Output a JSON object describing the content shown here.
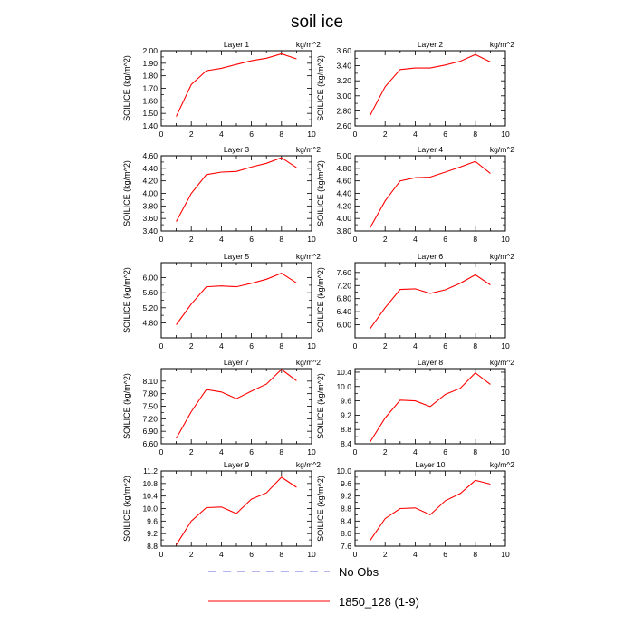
{
  "title": "soil ice",
  "legend": [
    {
      "label": "No Obs",
      "color": "#6b6bdb",
      "style": "dashed"
    },
    {
      "label": "1850_128 (1-9)",
      "color": "#ff0000",
      "style": "solid"
    }
  ],
  "chart_data": [
    {
      "type": "line",
      "panel_label": "Layer 1",
      "units": "kg/m^2",
      "ylabel": "SOILICE  (kg/m^2)",
      "xlim": [
        0,
        10
      ],
      "ylim": [
        1.4,
        2.0
      ],
      "yticks": [
        "1.40",
        "1.50",
        "1.60",
        "1.70",
        "1.80",
        "1.90",
        "2.00"
      ],
      "xticks": [
        "0",
        "2",
        "4",
        "6",
        "8",
        "10"
      ],
      "series": [
        {
          "name": "1850_128 (1-9)",
          "x": [
            1,
            2,
            3,
            4,
            5,
            6,
            7,
            8,
            9
          ],
          "y": [
            1.475,
            1.73,
            1.84,
            1.86,
            1.89,
            1.92,
            1.94,
            1.975,
            1.935
          ]
        }
      ]
    },
    {
      "type": "line",
      "panel_label": "Layer 2",
      "units": "kg/m^2",
      "ylabel": "SOILICE  (kg/m^2)",
      "xlim": [
        0,
        10
      ],
      "ylim": [
        2.6,
        3.6
      ],
      "yticks": [
        "2.60",
        "2.80",
        "3.00",
        "3.20",
        "3.40",
        "3.60"
      ],
      "xticks": [
        "0",
        "2",
        "4",
        "6",
        "8",
        "10"
      ],
      "series": [
        {
          "name": "1850_128 (1-9)",
          "x": [
            1,
            2,
            3,
            4,
            5,
            6,
            7,
            8,
            9
          ],
          "y": [
            2.74,
            3.12,
            3.35,
            3.37,
            3.37,
            3.41,
            3.46,
            3.55,
            3.45
          ]
        }
      ]
    },
    {
      "type": "line",
      "panel_label": "Layer 3",
      "units": "kg/m^2",
      "ylabel": "SOILICE  (kg/m^2)",
      "xlim": [
        0,
        10
      ],
      "ylim": [
        3.4,
        4.6
      ],
      "yticks": [
        "3.40",
        "3.60",
        "3.80",
        "4.00",
        "4.20",
        "4.40",
        "4.60"
      ],
      "xticks": [
        "0",
        "2",
        "4",
        "6",
        "8",
        "10"
      ],
      "series": [
        {
          "name": "1850_128 (1-9)",
          "x": [
            1,
            2,
            3,
            4,
            5,
            6,
            7,
            8,
            9
          ],
          "y": [
            3.55,
            4.0,
            4.3,
            4.34,
            4.35,
            4.42,
            4.48,
            4.57,
            4.41
          ]
        }
      ]
    },
    {
      "type": "line",
      "panel_label": "Layer 4",
      "units": "kg/m^2",
      "ylabel": "SOILICE  (kg/m^2)",
      "xlim": [
        0,
        10
      ],
      "ylim": [
        3.8,
        5.0
      ],
      "yticks": [
        "3.80",
        "4.00",
        "4.20",
        "4.40",
        "4.60",
        "4.80",
        "5.00"
      ],
      "xticks": [
        "0",
        "2",
        "4",
        "6",
        "8",
        "10"
      ],
      "series": [
        {
          "name": "1850_128 (1-9)",
          "x": [
            1,
            2,
            3,
            4,
            5,
            6,
            7,
            8,
            9
          ],
          "y": [
            3.85,
            4.28,
            4.6,
            4.65,
            4.66,
            4.74,
            4.82,
            4.91,
            4.72
          ]
        }
      ]
    },
    {
      "type": "line",
      "panel_label": "Layer 5",
      "units": "kg/m^2",
      "ylabel": "SOILICE  (kg/m^2)",
      "xlim": [
        0,
        10
      ],
      "ylim": [
        4.4,
        6.4
      ],
      "yticks": [
        "4.80",
        "5.20",
        "5.60",
        "6.00"
      ],
      "xticks": [
        "0",
        "2",
        "4",
        "6",
        "8",
        "10"
      ],
      "series": [
        {
          "name": "1850_128 (1-9)",
          "x": [
            1,
            2,
            3,
            4,
            5,
            6,
            7,
            8,
            9
          ],
          "y": [
            4.75,
            5.3,
            5.76,
            5.78,
            5.76,
            5.85,
            5.96,
            6.12,
            5.86
          ]
        }
      ]
    },
    {
      "type": "line",
      "panel_label": "Layer 6",
      "units": "kg/m^2",
      "ylabel": "SOILICE  (kg/m^2)",
      "xlim": [
        0,
        10
      ],
      "ylim": [
        5.6,
        7.9
      ],
      "yticks": [
        "6.00",
        "6.40",
        "6.80",
        "7.20",
        "7.60"
      ],
      "xticks": [
        "0",
        "2",
        "4",
        "6",
        "8",
        "10"
      ],
      "series": [
        {
          "name": "1850_128 (1-9)",
          "x": [
            1,
            2,
            3,
            4,
            5,
            6,
            7,
            8,
            9
          ],
          "y": [
            5.88,
            6.52,
            7.08,
            7.1,
            6.96,
            7.07,
            7.27,
            7.53,
            7.22
          ]
        }
      ]
    },
    {
      "type": "line",
      "panel_label": "Layer 7",
      "units": "kg/m^2",
      "ylabel": "SOILICE  (kg/m^2)",
      "xlim": [
        0,
        10
      ],
      "ylim": [
        6.6,
        8.4
      ],
      "yticks": [
        "6.60",
        "6.90",
        "7.20",
        "7.50",
        "7.80",
        "8.10"
      ],
      "xticks": [
        "0",
        "2",
        "4",
        "6",
        "8",
        "10"
      ],
      "series": [
        {
          "name": "1850_128 (1-9)",
          "x": [
            1,
            2,
            3,
            4,
            5,
            6,
            7,
            8,
            9
          ],
          "y": [
            6.73,
            7.37,
            7.9,
            7.84,
            7.68,
            7.86,
            8.03,
            8.38,
            8.11
          ]
        }
      ]
    },
    {
      "type": "line",
      "panel_label": "Layer 8",
      "units": "kg/m^2",
      "ylabel": "SOILICE  (kg/m^2)",
      "xlim": [
        0,
        10
      ],
      "ylim": [
        8.4,
        10.5
      ],
      "yticks": [
        "8.4",
        "8.8",
        "9.2",
        "9.6",
        "10.0",
        "10.4"
      ],
      "xticks": [
        "0",
        "2",
        "4",
        "6",
        "8",
        "10"
      ],
      "series": [
        {
          "name": "1850_128 (1-9)",
          "x": [
            1,
            2,
            3,
            4,
            5,
            6,
            7,
            8,
            9
          ],
          "y": [
            8.45,
            9.12,
            9.62,
            9.6,
            9.44,
            9.78,
            9.95,
            10.38,
            10.06
          ]
        }
      ]
    },
    {
      "type": "line",
      "panel_label": "Layer 9",
      "units": "kg/m^2",
      "ylabel": "SOILICE  (kg/m^2)",
      "xlim": [
        0,
        10
      ],
      "ylim": [
        8.8,
        11.2
      ],
      "yticks": [
        "8.8",
        "9.2",
        "9.6",
        "10.0",
        "10.4",
        "10.8",
        "11.2"
      ],
      "xticks": [
        "0",
        "2",
        "4",
        "6",
        "8",
        "10"
      ],
      "series": [
        {
          "name": "1850_128 (1-9)",
          "x": [
            1,
            2,
            3,
            4,
            5,
            6,
            7,
            8,
            9
          ],
          "y": [
            8.84,
            9.6,
            10.03,
            10.05,
            9.84,
            10.3,
            10.5,
            11.0,
            10.68
          ]
        }
      ]
    },
    {
      "type": "line",
      "panel_label": "Layer 10",
      "units": "kg/m^2",
      "ylabel": "SOILICE  (kg/m^2)",
      "xlim": [
        0,
        10
      ],
      "ylim": [
        7.6,
        10.0
      ],
      "yticks": [
        "7.6",
        "8.0",
        "8.4",
        "8.8",
        "9.2",
        "9.6",
        "10.0"
      ],
      "xticks": [
        "0",
        "2",
        "4",
        "6",
        "8",
        "10"
      ],
      "series": [
        {
          "name": "1850_128 (1-9)",
          "x": [
            1,
            2,
            3,
            4,
            5,
            6,
            7,
            8,
            9
          ],
          "y": [
            7.78,
            8.48,
            8.8,
            8.82,
            8.6,
            9.05,
            9.28,
            9.7,
            9.58
          ]
        }
      ]
    }
  ]
}
